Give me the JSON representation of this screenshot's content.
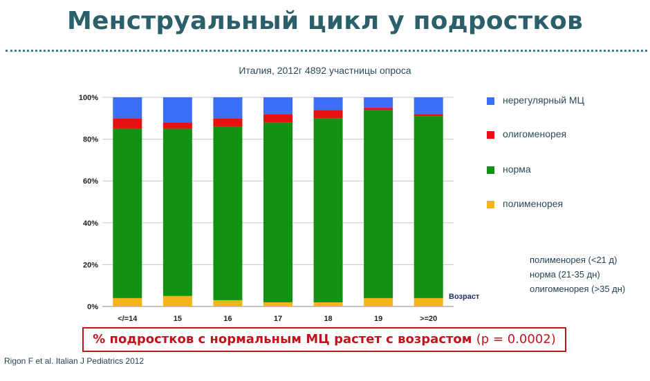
{
  "slide": {
    "title": "Менструальный цикл у подростков",
    "subtitle": "Италия, 2012г   4892 участницы опроса",
    "definitions": [
      "полименорея (<21 д)",
      "норма  (21-35 дн)",
      "олигоменорея (>35 дн)"
    ],
    "conclusion_main": "% подростков с нормальным МЦ растет с возрастом ",
    "conclusion_p": "(p = 0.0002)",
    "reference": "Rigon F et al. Italian J Pediatrics 2012"
  },
  "chart_data": {
    "type": "bar",
    "stacked": true,
    "categories": [
      "</=14",
      "15",
      "16",
      "17",
      "18",
      "19",
      ">=20"
    ],
    "xlabel": "Возраст",
    "ylim": [
      0,
      100
    ],
    "yticks": [
      "0%",
      "20%",
      "40%",
      "60%",
      "80%",
      "100%"
    ],
    "grid": true,
    "legend_position": "right",
    "series": [
      {
        "name": "полименорея",
        "color": "#f4b41a",
        "values": [
          4,
          5,
          3,
          2,
          2,
          4,
          4
        ]
      },
      {
        "name": "норма",
        "color": "#129112",
        "values": [
          81,
          80,
          83,
          86,
          88,
          90,
          87
        ]
      },
      {
        "name": "олигоменорея",
        "color": "#e81010",
        "values": [
          5,
          3,
          4,
          4,
          4,
          1,
          1
        ]
      },
      {
        "name": "нерегулярный МЦ",
        "color": "#3a6ff7",
        "values": [
          10,
          12,
          10,
          8,
          6,
          5,
          8
        ]
      }
    ],
    "legend_order": [
      "нерегулярный МЦ",
      "олигоменорея",
      "норма",
      "полименорея"
    ]
  }
}
